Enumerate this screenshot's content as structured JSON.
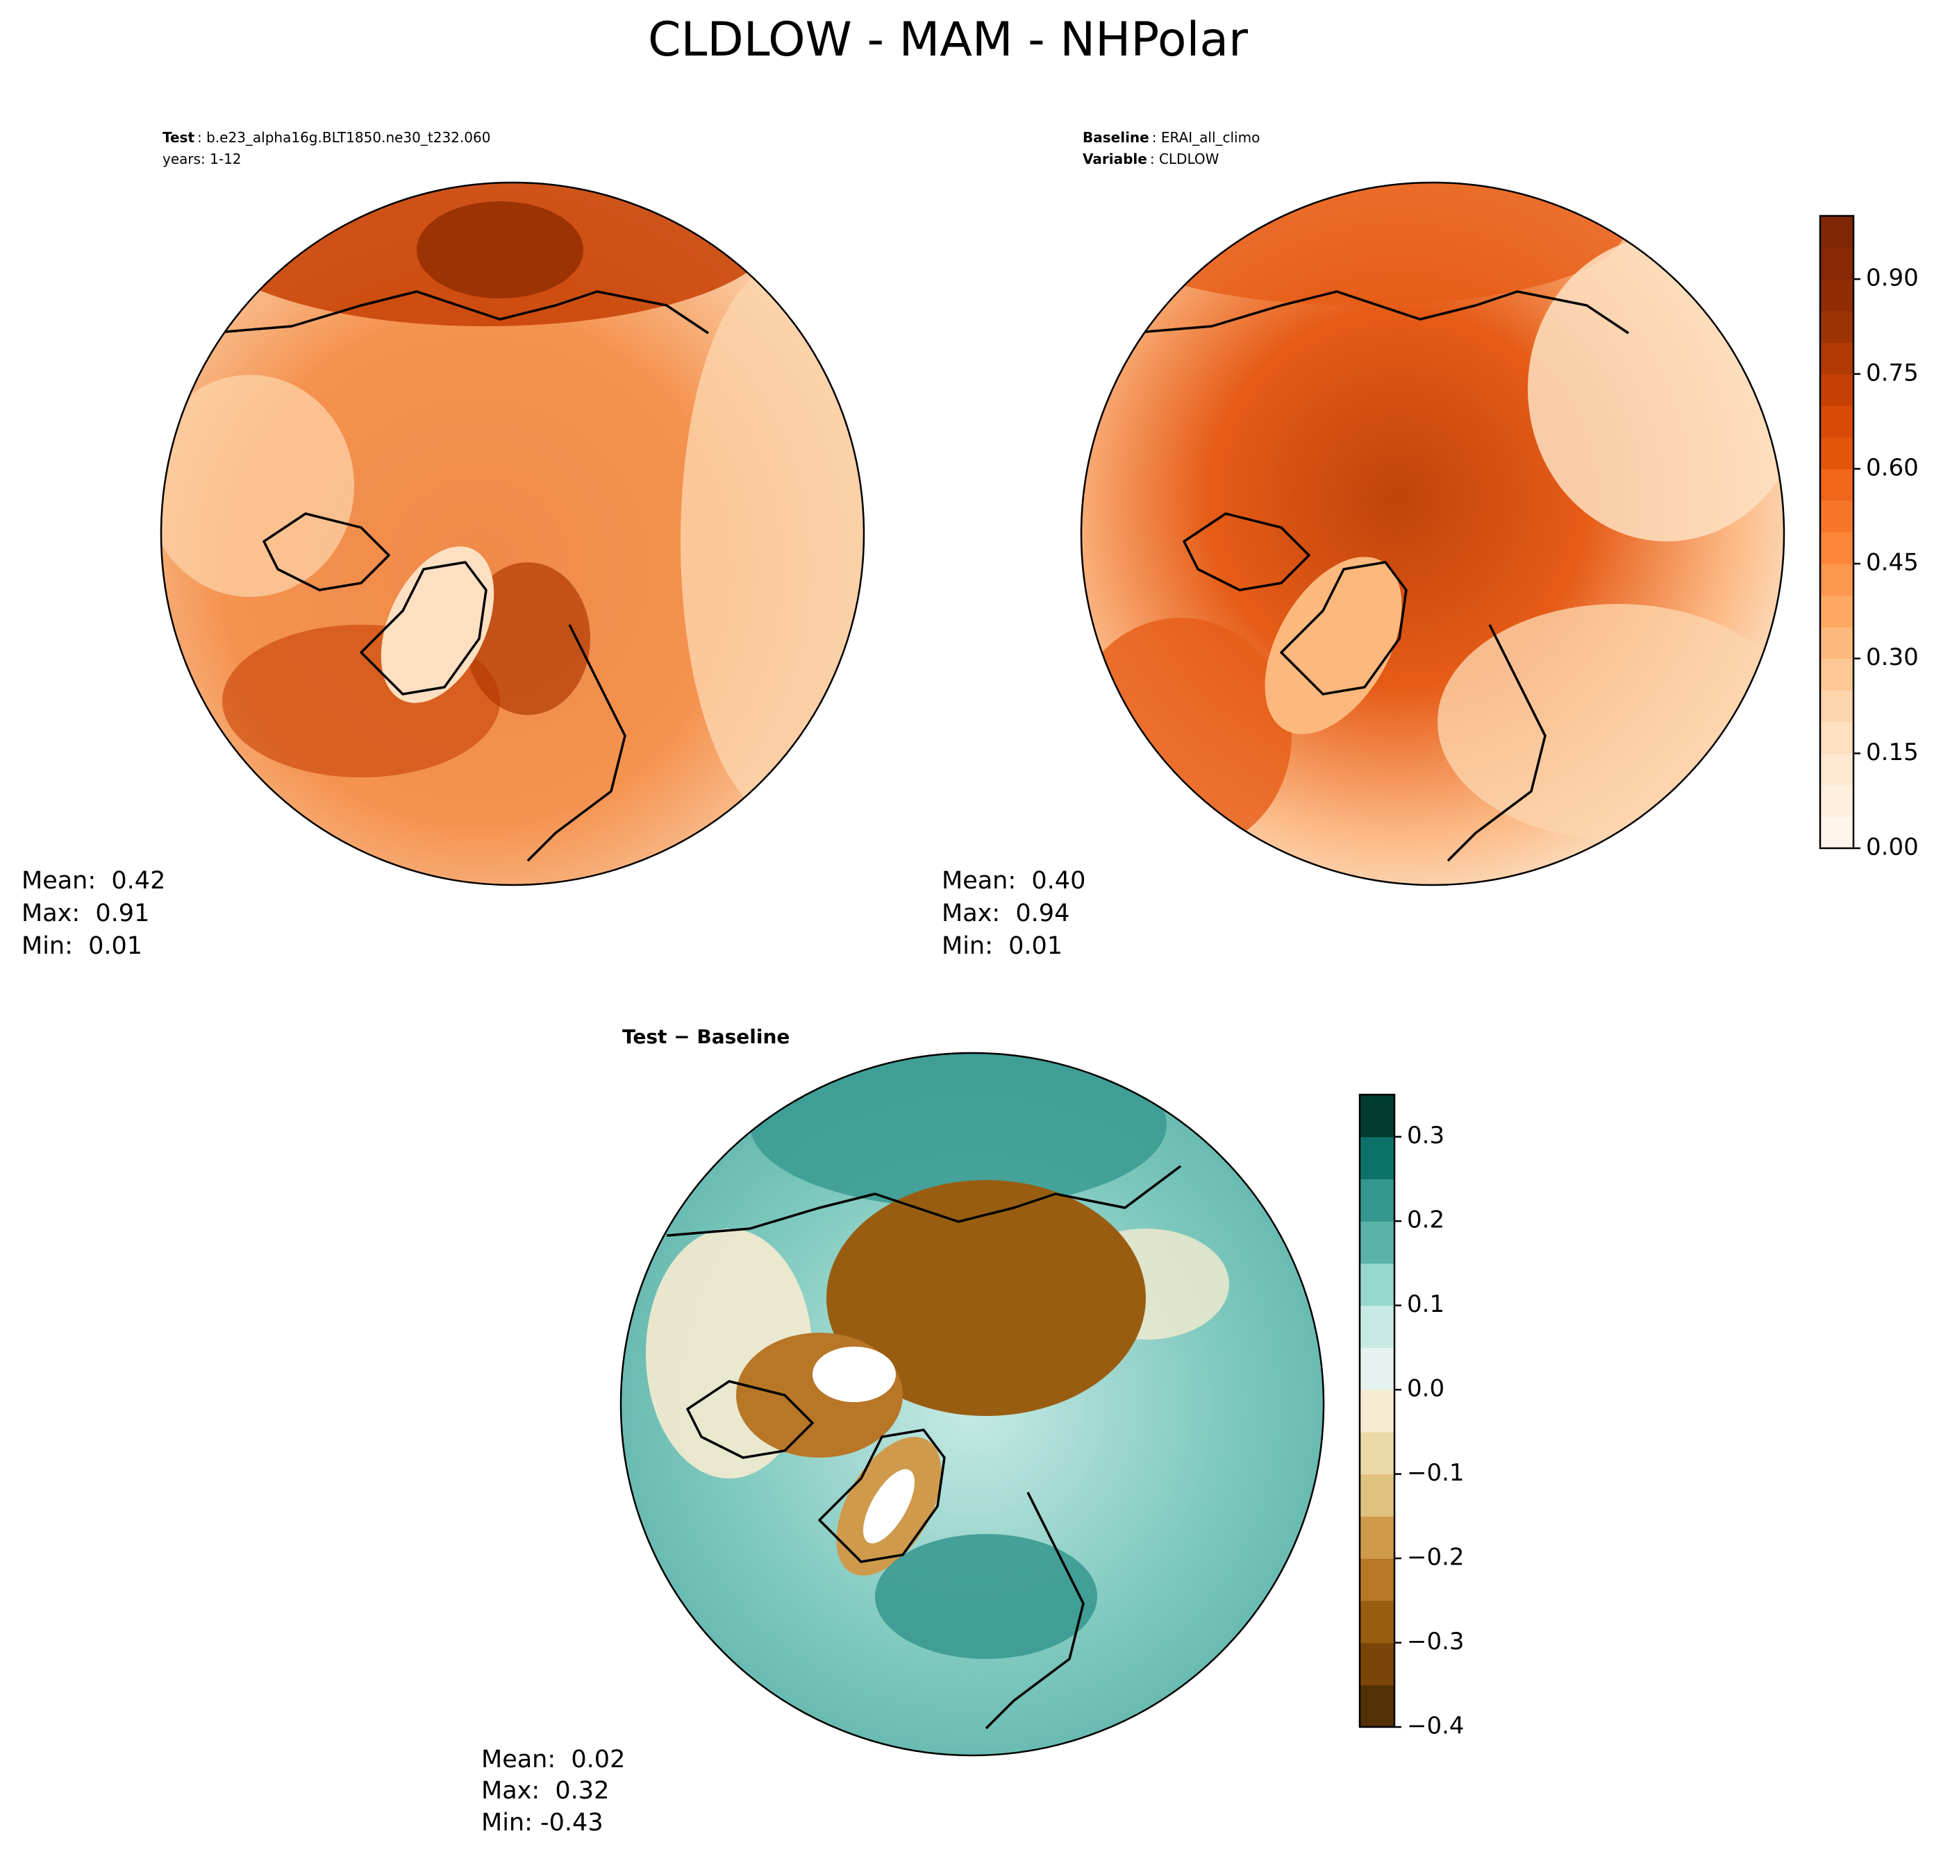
{
  "title": "CLDLOW - MAM - NHPolar",
  "panels": [
    {
      "header": [
        {
          "key": "Test",
          "text": ": b.e23_alpha16g.BLT1850.ne30_t232.060"
        },
        {
          "text": "years: 1-12"
        }
      ],
      "stats": [
        "Mean:  0.42",
        "Max:  0.91",
        "Min:  0.01"
      ]
    },
    {
      "header": [
        {
          "key": "Baseline",
          "text": ": ERAI_all_climo"
        },
        {
          "key": "Variable",
          "text": ": CLDLOW"
        }
      ],
      "stats": [
        "Mean:  0.40",
        "Max:  0.94",
        "Min:  0.01"
      ]
    },
    {
      "header": [
        {
          "text": "Test − Baseline"
        }
      ],
      "stats": [
        "Mean:  0.02",
        "Max:  0.32",
        "Min: -0.43"
      ]
    }
  ],
  "colorbars": [
    {
      "lim": [
        0,
        1
      ],
      "ticks": [
        {
          "value": 0,
          "label": "0.00"
        },
        0.15,
        {
          "value": 0.3,
          "label": "0.30"
        },
        0.45,
        {
          "value": 0.6,
          "label": "0.60"
        },
        0.75,
        {
          "value": 0.9,
          "label": "0.90"
        }
      ],
      "colors": [
        "#fff5eb",
        "#ffefdf",
        "#fee8d2",
        "#fee0c1",
        "#fdd5ac",
        "#fdc895",
        "#fdb97d",
        "#fda863",
        "#fd974d",
        "#fd8639",
        "#f8762a",
        "#f0661b",
        "#e5560d",
        "#d84a05",
        "#c74003",
        "#b13903",
        "#9d3203",
        "#8f2c04",
        "#872904",
        "#7f2704"
      ]
    },
    {
      "lim": [
        -0.4,
        0.35
      ],
      "ticks": [
        {
          "value": -0.4,
          "label": "−0.4"
        },
        {
          "value": -0.3,
          "label": "−0.3"
        },
        {
          "value": -0.2,
          "label": "−0.2"
        },
        {
          "value": -0.1,
          "label": "−0.1"
        },
        {
          "value": 0,
          "label": "0.0"
        },
        0.1,
        0.2,
        0.3
      ],
      "colors": [
        "#543005",
        "#7a4608",
        "#995d12",
        "#b87627",
        "#cf9a4c",
        "#dfc27d",
        "#ecd9a8",
        "#f5ebd0",
        "#e6f2ef",
        "#c7eae5",
        "#97d6cc",
        "#5ab2a8",
        "#35978f",
        "#0c7269",
        "#003c30"
      ]
    }
  ]
}
